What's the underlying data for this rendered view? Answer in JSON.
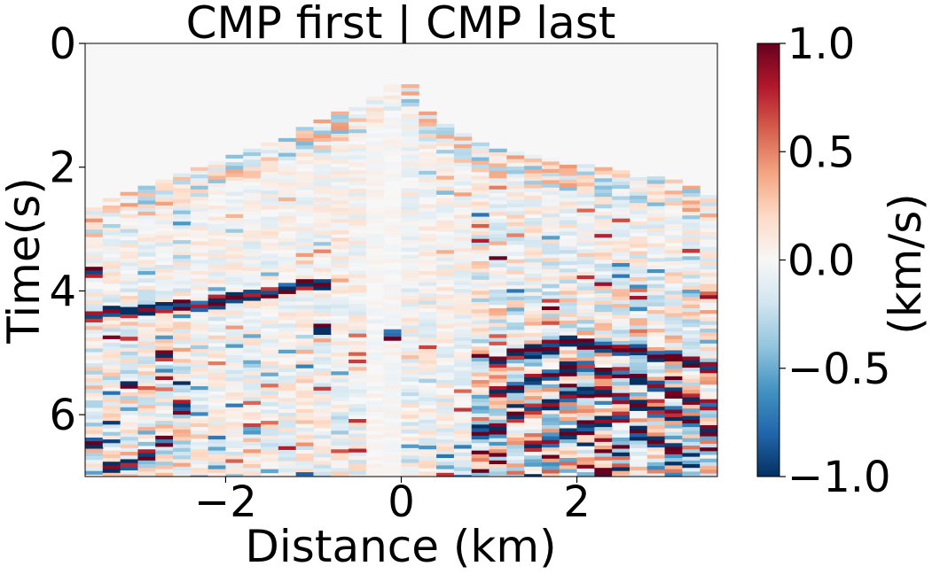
{
  "chart_data": {
    "type": "heatmap",
    "title": "CMP first | CMP last",
    "xlabel": "Distance (km)",
    "ylabel": "Time(s)",
    "xlim": [
      -3.6,
      3.6
    ],
    "ylim": [
      7.0,
      0.0
    ],
    "x_ticks": [
      -2,
      0,
      2
    ],
    "x_tick_labels": [
      "−2",
      "0",
      "2"
    ],
    "y_ticks": [
      0,
      2,
      4,
      6
    ],
    "y_tick_labels": [
      "0",
      "2",
      "4",
      "6"
    ],
    "colorbar": {
      "label": "(km/s)",
      "range": [
        -1.0,
        1.0
      ],
      "ticks": [
        1.0,
        0.5,
        0.0,
        -0.5,
        -1.0
      ],
      "tick_labels": [
        "1.0",
        "0.5",
        "0.0",
        "−0.5",
        "−1.0"
      ],
      "colormap": "RdBu_r",
      "colors": [
        "#053061",
        "#2166ac",
        "#4393c3",
        "#92c5de",
        "#d1e5f0",
        "#f7f7f7",
        "#fddbc7",
        "#f4a582",
        "#d6604d",
        "#b2182b",
        "#67001f"
      ]
    },
    "traces": {
      "count": 36,
      "first_arrival_s": [
        2.8,
        2.65,
        2.55,
        2.45,
        2.35,
        2.25,
        2.15,
        2.05,
        1.95,
        1.85,
        1.75,
        1.62,
        1.5,
        1.38,
        1.25,
        1.12,
        0.95,
        0.75,
        0.75,
        1.25,
        1.45,
        1.6,
        1.75,
        1.85,
        1.9,
        1.95,
        2.0,
        2.05,
        2.1,
        2.15,
        2.2,
        2.25,
        2.3,
        2.35,
        2.45,
        2.6
      ],
      "strong_events_s": [
        [
          3.7,
          4.4,
          6.4
        ],
        [
          4.3,
          6.8
        ],
        [
          4.3,
          6.8
        ],
        [
          4.3,
          6.6
        ],
        [
          4.25,
          5.0
        ],
        [
          4.2,
          5.8
        ],
        [
          4.2
        ],
        [
          4.15
        ],
        [
          4.1
        ],
        [
          4.05
        ],
        [
          4.0
        ],
        [
          3.95
        ],
        [
          3.9
        ],
        [
          3.85,
          4.6
        ],
        [],
        [],
        [],
        [
          4.7
        ],
        [],
        [],
        [],
        [],
        [
          6.3
        ],
        [
          5.1,
          5.6,
          6.2
        ],
        [
          5.0,
          5.5,
          6.0
        ],
        [
          4.9,
          5.4,
          5.9,
          6.5
        ],
        [
          4.9,
          5.3,
          5.8,
          6.4
        ],
        [
          4.8,
          5.2,
          5.7,
          6.3
        ],
        [
          4.8,
          5.2,
          5.6,
          6.2
        ],
        [
          4.9,
          5.3,
          5.6,
          6.1
        ],
        [
          4.9,
          5.3,
          5.7,
          6.0
        ],
        [
          4.9,
          5.4,
          5.8,
          6.3
        ],
        [
          5.0,
          5.5,
          5.9,
          6.4
        ],
        [
          5.0,
          5.6,
          6.0,
          6.5
        ],
        [
          5.1,
          5.7,
          6.1
        ],
        [
          5.2,
          5.8,
          6.2
        ]
      ],
      "quiet_zone_x_km": [
        -0.3,
        0.0
      ]
    }
  }
}
